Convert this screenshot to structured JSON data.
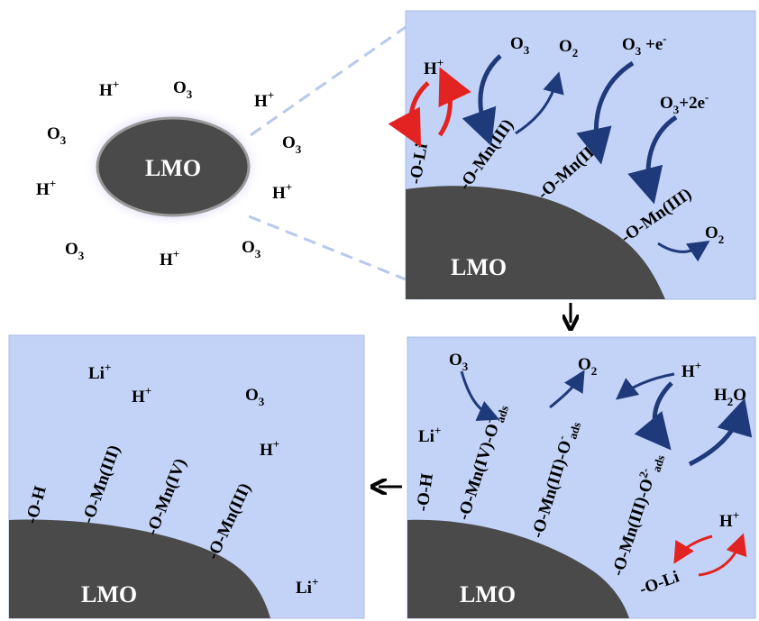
{
  "particle": {
    "label": "LMO",
    "species": [
      {
        "main": "H",
        "sup": "+",
        "sub": ""
      },
      {
        "main": "O",
        "sup": "",
        "sub": "3"
      },
      {
        "main": "H",
        "sup": "+",
        "sub": ""
      },
      {
        "main": "O",
        "sup": "",
        "sub": "3"
      },
      {
        "main": "O",
        "sup": "",
        "sub": "3"
      },
      {
        "main": "H",
        "sup": "+",
        "sub": ""
      },
      {
        "main": "H",
        "sup": "+",
        "sub": ""
      },
      {
        "main": "O",
        "sup": "",
        "sub": "3"
      },
      {
        "main": "H",
        "sup": "+",
        "sub": ""
      },
      {
        "main": "O",
        "sup": "",
        "sub": "3"
      }
    ]
  },
  "panel_top_right": {
    "surface_label": "LMO",
    "bonds": [
      "-O-Li",
      "-O-Mn(III)",
      "-O-Mn(III)",
      "-O-Mn(III)"
    ],
    "species": [
      {
        "main": "H",
        "sup": "+",
        "sub": ""
      },
      {
        "main": "O",
        "sup": "",
        "sub": "3"
      },
      {
        "main": "O",
        "sup": "",
        "sub": "2"
      },
      {
        "main": "O",
        "sup": "",
        "sub": "3",
        "tail": " +e",
        "tail_sup": "-"
      },
      {
        "main": "O",
        "sup": "",
        "sub": "3",
        "tail": "+2e",
        "tail_sup": "-"
      },
      {
        "main": "O",
        "sup": "",
        "sub": "2"
      }
    ]
  },
  "panel_bottom_right": {
    "surface_label": "LMO",
    "bonds": [
      {
        "text": "-O-H",
        "sup": "",
        "sub": ""
      },
      {
        "text": "-O-Mn(IV)-O",
        "sup": "-",
        "sub": "ads"
      },
      {
        "text": "-O-Mn(III)-O",
        "sup": "-",
        "sub": "ads"
      },
      {
        "text": "-O-Mn(III)-O",
        "sup": "2-",
        "sub": "ads"
      },
      {
        "text": "-O-Li",
        "sup": "",
        "sub": ""
      }
    ],
    "species": [
      {
        "main": "O",
        "sup": "",
        "sub": "3"
      },
      {
        "main": "O",
        "sup": "",
        "sub": "2"
      },
      {
        "main": "H",
        "sup": "+",
        "sub": ""
      },
      {
        "main": "H",
        "sup": "",
        "sub": "2",
        "tail": "O",
        "tail_sup": ""
      },
      {
        "main": "Li",
        "sup": "+",
        "sub": ""
      },
      {
        "main": "H",
        "sup": "+",
        "sub": ""
      }
    ]
  },
  "panel_bottom_left": {
    "surface_label": "LMO",
    "bonds": [
      "-O-H",
      "-O-Mn(III)",
      "-O-Mn(IV)",
      "-O-Mn(III)"
    ],
    "species": [
      {
        "main": "Li",
        "sup": "+",
        "sub": ""
      },
      {
        "main": "H",
        "sup": "+",
        "sub": ""
      },
      {
        "main": "O",
        "sup": "",
        "sub": "3"
      },
      {
        "main": "H",
        "sup": "+",
        "sub": ""
      },
      {
        "main": "Li",
        "sup": "+",
        "sub": ""
      }
    ]
  },
  "colors": {
    "panel_bg": "#c3d3f7",
    "solid": "#4a4a4a",
    "arrow_blue": "#1e3a7a",
    "arrow_red": "#e32222",
    "dash": "#b8c8ec"
  }
}
